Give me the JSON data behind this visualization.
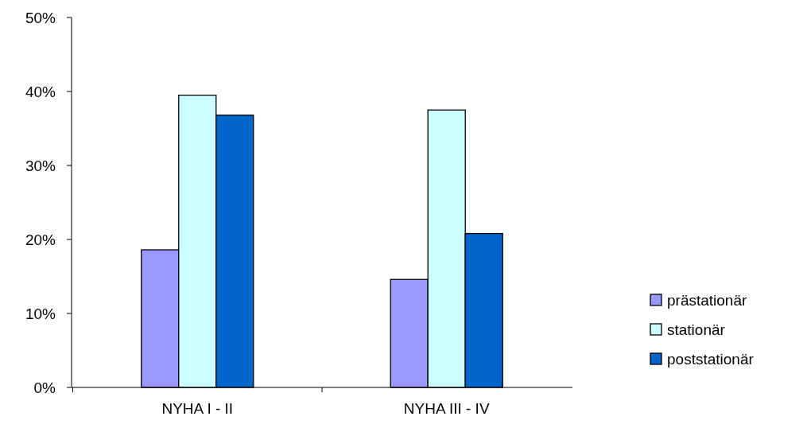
{
  "chart_data": {
    "type": "bar",
    "categories": [
      "NYHA I - II",
      "NYHA III - IV"
    ],
    "series": [
      {
        "name": "prästationär",
        "color": "#9999ff",
        "values": [
          18.6,
          14.6
        ]
      },
      {
        "name": "stationär",
        "color": "#ccffff",
        "values": [
          39.5,
          37.5
        ]
      },
      {
        "name": "poststationär",
        "color": "#0066cc",
        "values": [
          36.8,
          20.8
        ]
      }
    ],
    "ylim": [
      0,
      50
    ],
    "yticks": [
      {
        "value": 0,
        "label": "0%"
      },
      {
        "value": 10,
        "label": "10%"
      },
      {
        "value": 20,
        "label": "20%"
      },
      {
        "value": 30,
        "label": "30%"
      },
      {
        "value": 40,
        "label": "40%"
      },
      {
        "value": 50,
        "label": "50%"
      }
    ],
    "legend": "right"
  }
}
